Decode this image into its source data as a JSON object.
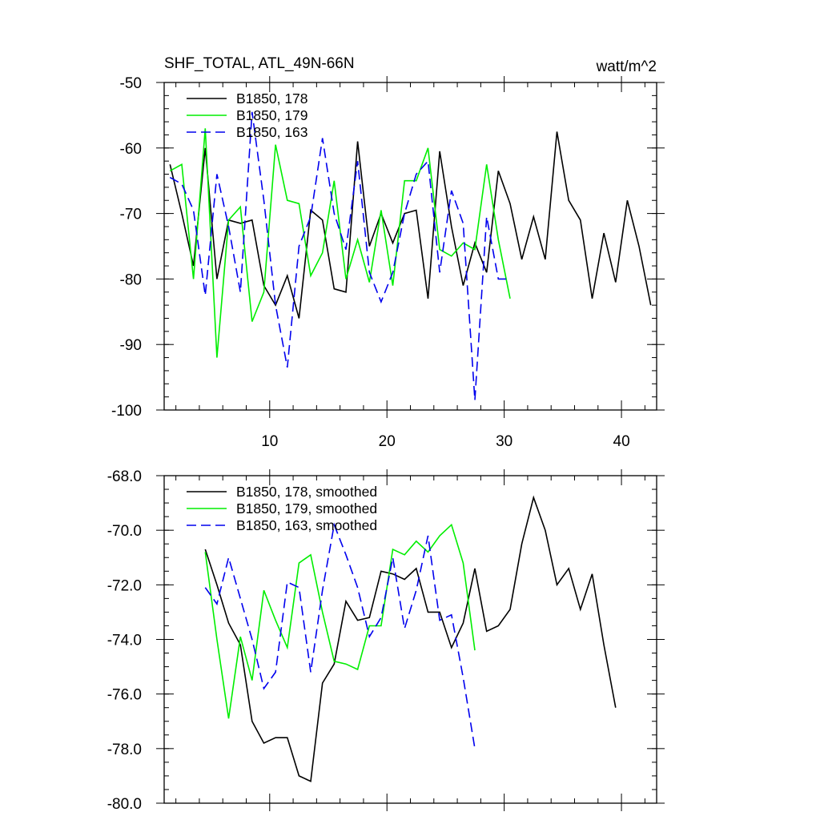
{
  "header": {
    "title": "SHF_TOTAL, ATL_49N-66N",
    "units": "watt/m^2"
  },
  "chart_data": [
    {
      "type": "line",
      "title": "SHF_TOTAL, ATL_49N-66N",
      "units": "watt/m^2",
      "xlabel": "",
      "ylabel": "",
      "xlim": [
        1,
        43
      ],
      "ylim": [
        -100,
        -50
      ],
      "xticks": [
        10,
        20,
        30,
        40
      ],
      "yticks": [
        -50,
        -60,
        -70,
        -80,
        -90,
        -100
      ],
      "ytick_labels": [
        "-50",
        "-60",
        "-70",
        "-80",
        "-90",
        "-100"
      ],
      "series": [
        {
          "name": "B1850, 178",
          "color": "#000000",
          "dash": false,
          "x_start": 1.5,
          "values": [
            -62.5,
            -70,
            -78,
            -60,
            -80,
            -71,
            -71.5,
            -71,
            -81,
            -84,
            -79.5,
            -86,
            -69.5,
            -71,
            -81.5,
            -82,
            -59,
            -75,
            -70,
            -74.5,
            -70,
            -69.5,
            -83,
            -60.5,
            -72,
            -81,
            -74.5,
            -79,
            -63.5,
            -68.5,
            -77,
            -70.5,
            -77,
            -57.5,
            -68,
            -71,
            -83,
            -73,
            -80.5,
            -68,
            -75,
            -84
          ]
        },
        {
          "name": "B1850, 179",
          "color": "#00ee00",
          "dash": false,
          "x_start": 1.5,
          "values": [
            -63.5,
            -62.5,
            -80,
            -57,
            -92,
            -71,
            -69,
            -86.5,
            -82,
            -59.5,
            -68,
            -68.5,
            -79.5,
            -76,
            -65,
            -80,
            -74,
            -80.5,
            -69.5,
            -81,
            -65,
            -65,
            -60,
            -75.5,
            -76.5,
            -74.5,
            -75.5,
            -62.5,
            -74,
            -83
          ]
        },
        {
          "name": "B1850, 163",
          "color": "#0000ee",
          "dash": true,
          "x_start": 1.5,
          "values": [
            -64.5,
            -65.5,
            -69.5,
            -82.5,
            -64,
            -72,
            -82,
            -54.5,
            -68,
            -84,
            -93.5,
            -75,
            -70.5,
            -58.5,
            -70,
            -75.5,
            -62,
            -79,
            -83.5,
            -79,
            -70,
            -64,
            -62,
            -79,
            -66.5,
            -71.5,
            -98.5,
            -70.5,
            -80,
            -80
          ]
        }
      ]
    },
    {
      "type": "line",
      "title": "",
      "xlabel": "",
      "ylabel": "",
      "xlim": [
        1,
        43
      ],
      "ylim": [
        -80,
        -68
      ],
      "xticks": [
        10,
        20,
        30,
        40
      ],
      "yticks": [
        -68,
        -70,
        -72,
        -74,
        -76,
        -78,
        -80
      ],
      "ytick_labels": [
        "-68.0",
        "-70.0",
        "-72.0",
        "-74.0",
        "-76.0",
        "-78.0",
        "-80.0"
      ],
      "series": [
        {
          "name": "B1850, 178, smoothed",
          "color": "#000000",
          "dash": false,
          "x_start": 4.5,
          "values": [
            -70.7,
            -72,
            -73.4,
            -74.2,
            -77,
            -77.8,
            -77.6,
            -77.6,
            -79,
            -79.2,
            -75.6,
            -74.9,
            -72.6,
            -73.3,
            -73.2,
            -71.5,
            -71.6,
            -71.8,
            -71.4,
            -73,
            -73,
            -74.3,
            -73.4,
            -71.4,
            -73.7,
            -73.5,
            -72.9,
            -70.5,
            -68.8,
            -70,
            -72,
            -71.4,
            -72.9,
            -71.6,
            -74.2,
            -76.5
          ]
        },
        {
          "name": "B1850, 179, smoothed",
          "color": "#00ee00",
          "dash": false,
          "x_start": 4.5,
          "values": [
            -70.8,
            -74,
            -76.9,
            -73.9,
            -75.5,
            -72.2,
            -73.3,
            -74.3,
            -71.2,
            -70.9,
            -73,
            -74.8,
            -74.9,
            -75.1,
            -73.5,
            -73.5,
            -70.7,
            -70.9,
            -70.4,
            -70.8,
            -70.2,
            -69.8,
            -71.2,
            -74.4
          ]
        },
        {
          "name": "B1850, 163, smoothed",
          "color": "#0000ee",
          "dash": true,
          "x_start": 4.5,
          "values": [
            -72.1,
            -72.7,
            -71,
            -72.5,
            -74,
            -75.8,
            -75.2,
            -71.9,
            -72.1,
            -75.2,
            -72.2,
            -69.8,
            -70.9,
            -72.1,
            -73.9,
            -73.2,
            -71,
            -73.6,
            -72.2,
            -70.2,
            -73.3,
            -73.1,
            -75.4,
            -78
          ]
        }
      ]
    }
  ]
}
